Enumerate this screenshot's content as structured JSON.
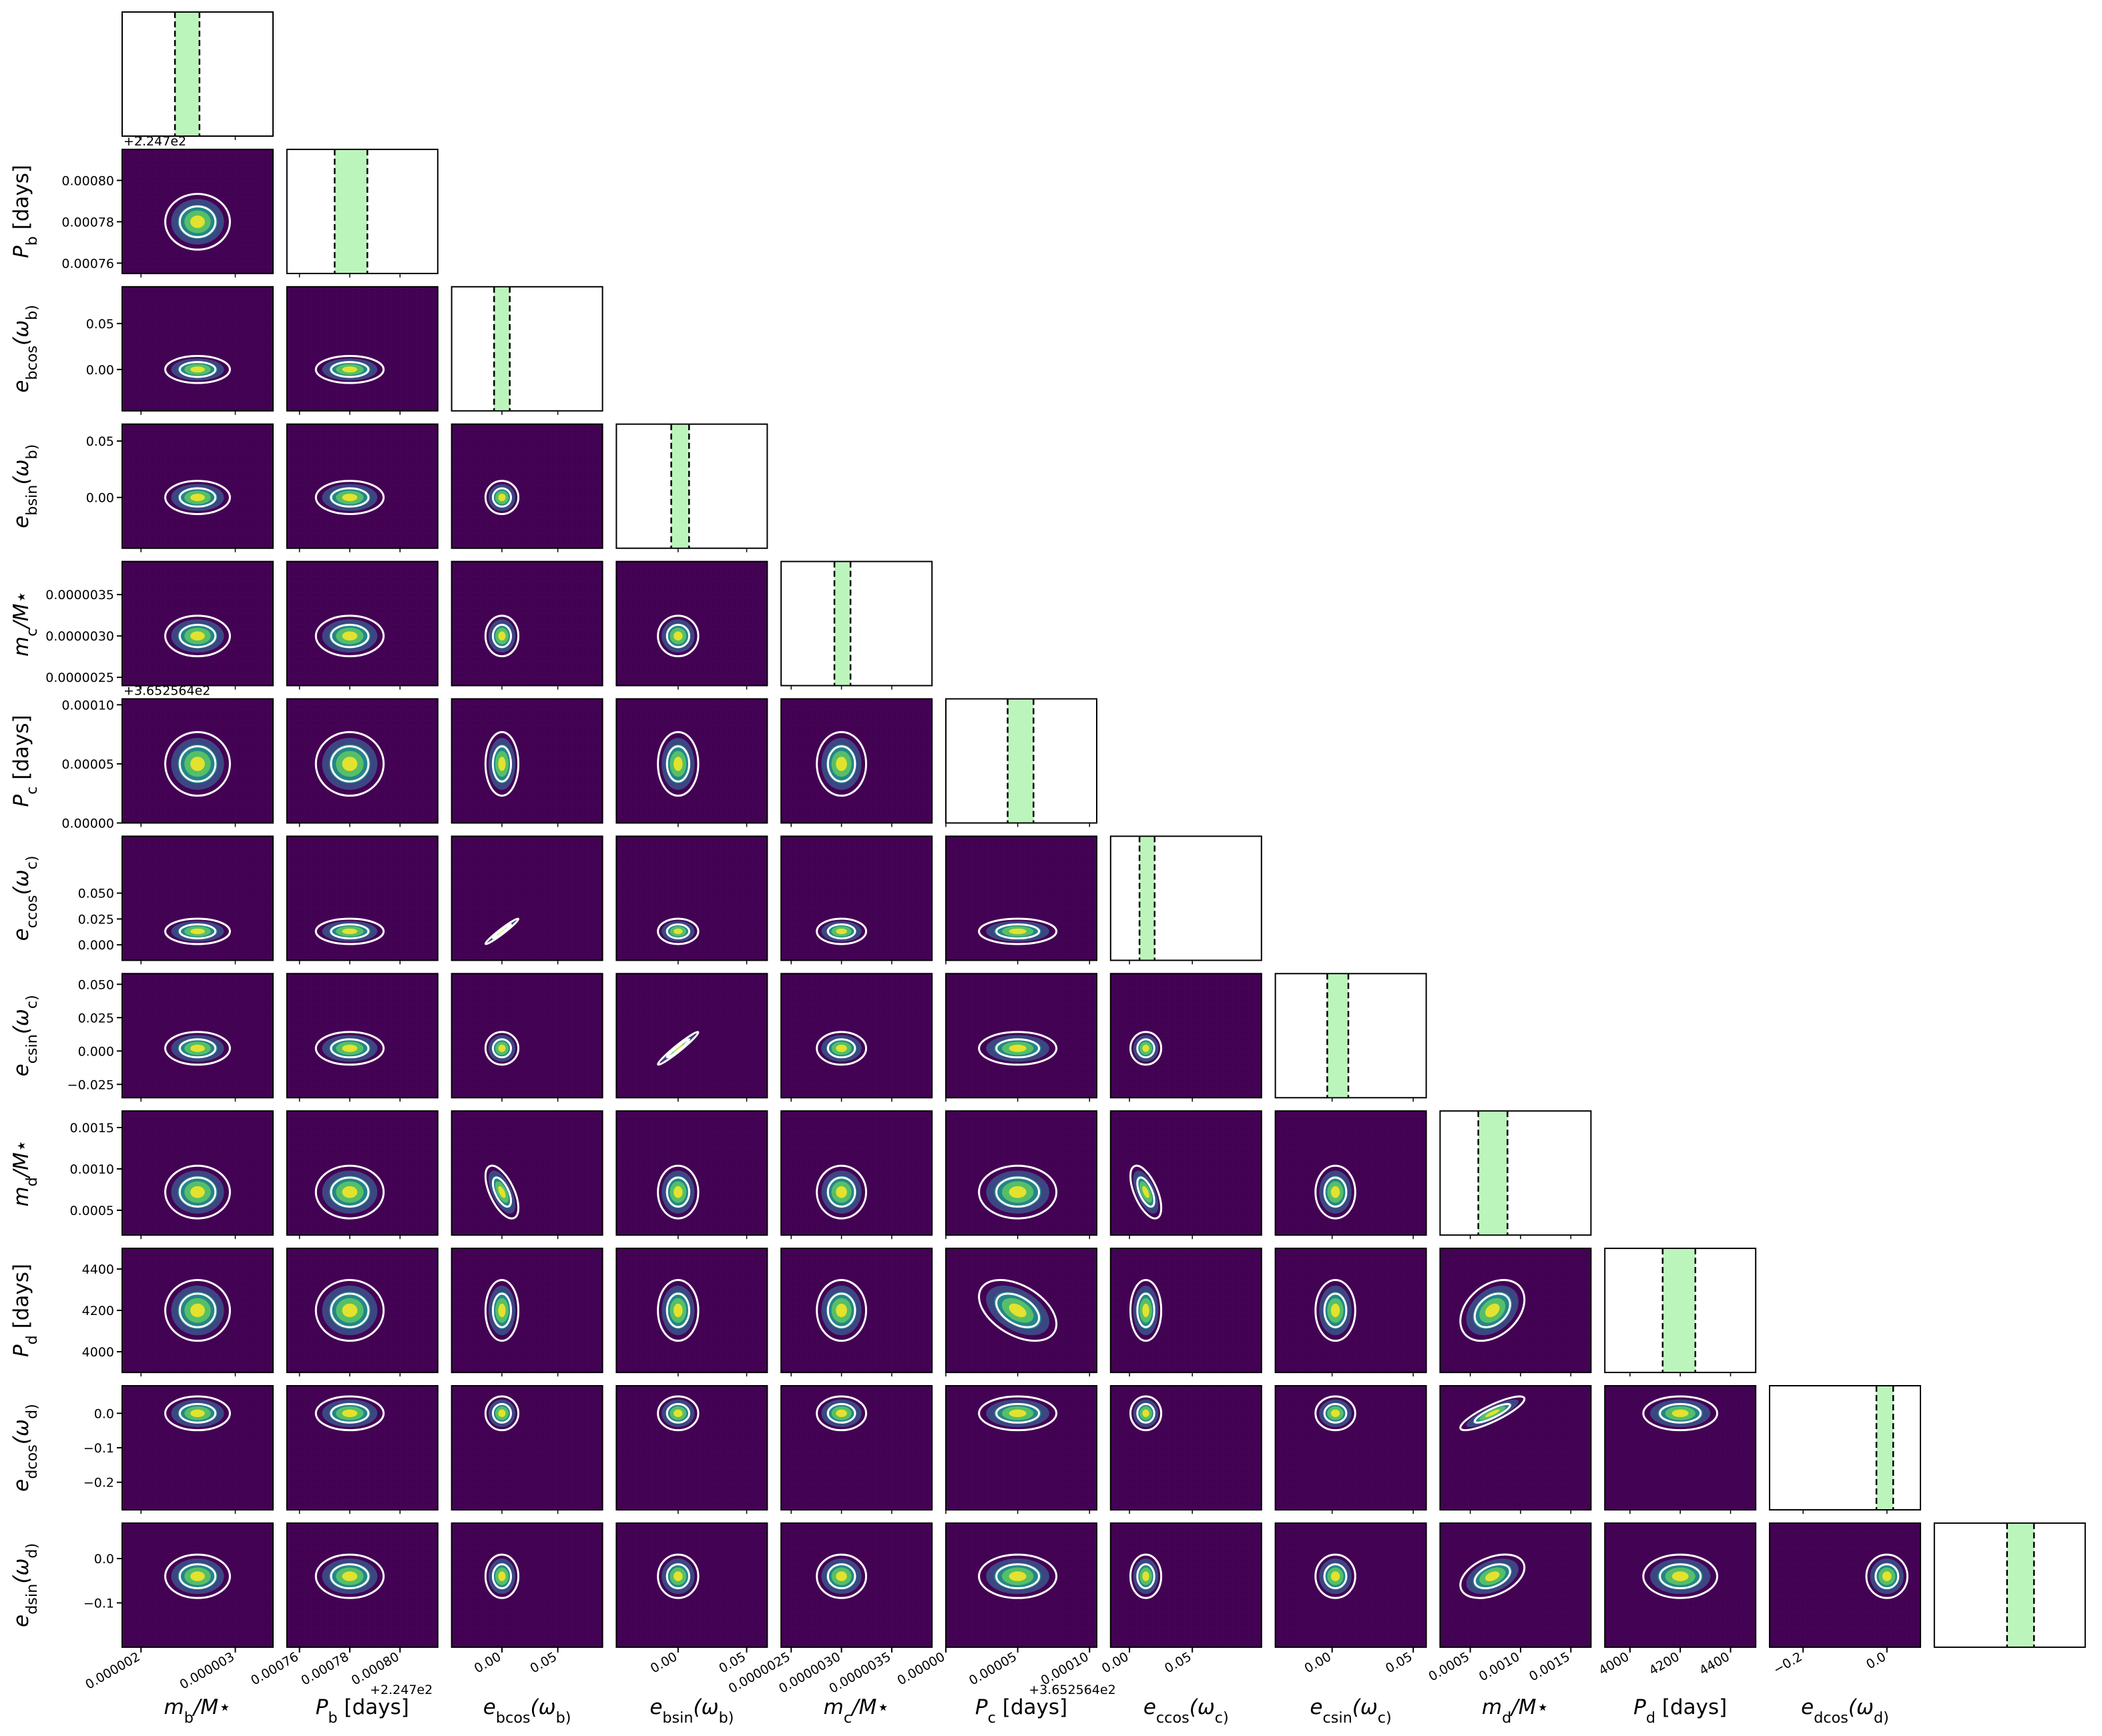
{
  "colors": {
    "hist_line": "#1f77b4",
    "ci_fill": "#90ee90",
    "ci_line": "#000000",
    "contour": "#ffffff",
    "density_low": "#440154",
    "density_mid1": "#3b528b",
    "density_mid2": "#21918c",
    "density_mid3": "#5ec962",
    "density_high": "#fde725",
    "panel_border": "#000000"
  },
  "chart_data": {
    "type": "corner",
    "grid": false,
    "params": [
      {
        "id": "m_b",
        "label": "m_b/M⋆",
        "range": [
          1.8e-06,
          3.4e-06
        ],
        "median": 2.6e-06,
        "ci": [
          2.36e-06,
          2.62e-06
        ],
        "sigma": 1.4e-07,
        "ticks": [
          {
            "v": 2e-06,
            "t": "0.000002"
          },
          {
            "v": 3e-06,
            "t": "0.000003"
          }
        ]
      },
      {
        "id": "P_b",
        "label": "P_b [days]",
        "offset": "+2.247e2",
        "range": [
          0.000755,
          0.000815
        ],
        "median": 0.00078,
        "ci": [
          0.000774,
          0.000787
        ],
        "sigma": 5.5e-06,
        "ticks": [
          {
            "v": 0.00076,
            "t": "0.00076"
          },
          {
            "v": 0.00078,
            "t": "0.00078"
          },
          {
            "v": 0.0008,
            "t": "0.00080"
          }
        ]
      },
      {
        "id": "ebcos",
        "label": "e_bcos(ω_b)",
        "range": [
          -0.045,
          0.09
        ],
        "median": 0.0,
        "ci": [
          -0.007,
          0.007
        ],
        "sigma": 0.006,
        "ticks": [
          {
            "v": 0.0,
            "t": "0.00"
          },
          {
            "v": 0.05,
            "t": "0.05"
          }
        ]
      },
      {
        "id": "ebsin",
        "label": "e_bsin(ω_b)",
        "range": [
          -0.045,
          0.065
        ],
        "median": 0.0,
        "ci": [
          -0.005,
          0.008
        ],
        "sigma": 0.006,
        "ticks": [
          {
            "v": 0.0,
            "t": "0.00"
          },
          {
            "v": 0.05,
            "t": "0.05"
          }
        ]
      },
      {
        "id": "m_c",
        "label": "m_c/M⋆",
        "range": [
          2.4e-06,
          3.9e-06
        ],
        "median": 3e-06,
        "ci": [
          2.93e-06,
          3.09e-06
        ],
        "sigma": 1e-07,
        "ticks": [
          {
            "v": 2.5e-06,
            "t": "0.0000025"
          },
          {
            "v": 3e-06,
            "t": "0.0000030"
          },
          {
            "v": 3.5e-06,
            "t": "0.0000035"
          }
        ]
      },
      {
        "id": "P_c",
        "label": "P_c [days]",
        "offset": "+3.652564e2",
        "range": [
          0.0,
          0.000105
        ],
        "median": 5e-05,
        "ci": [
          4.3e-05,
          6.1e-05
        ],
        "sigma": 1.1e-05,
        "ticks": [
          {
            "v": 0.0,
            "t": "0.00000"
          },
          {
            "v": 5e-05,
            "t": "0.00005"
          },
          {
            "v": 0.0001,
            "t": "0.00010"
          }
        ]
      },
      {
        "id": "eccos",
        "label": "e_ccos(ω_c)",
        "range": [
          -0.015,
          0.105
        ],
        "median": 0.013,
        "ci": [
          0.008,
          0.02
        ],
        "sigma": 0.005,
        "ticks": [
          {
            "v": 0.0,
            "t": "0.00"
          },
          {
            "v": 0.05,
            "t": "0.05"
          }
        ]
      },
      {
        "id": "ecsin",
        "label": "e_csin(ω_c)",
        "range": [
          -0.035,
          0.058
        ],
        "median": 0.002,
        "ci": [
          -0.003,
          0.01
        ],
        "sigma": 0.005,
        "ticks": [
          {
            "v": 0.0,
            "t": "0.00"
          },
          {
            "v": 0.05,
            "t": "0.05"
          }
        ]
      },
      {
        "id": "m_d",
        "label": "m_d/M⋆",
        "range": [
          0.0002,
          0.0017
        ],
        "median": 0.00072,
        "ci": [
          0.00058,
          0.00087
        ],
        "sigma": 0.00013,
        "ticks": [
          {
            "v": 0.0005,
            "t": "0.0005"
          },
          {
            "v": 0.001,
            "t": "0.0010"
          },
          {
            "v": 0.0015,
            "t": "0.0015"
          }
        ]
      },
      {
        "id": "P_d",
        "label": "P_d [days]",
        "range": [
          3900,
          4500
        ],
        "median": 4200,
        "ci": [
          4130,
          4260
        ],
        "sigma": 60,
        "ticks": [
          {
            "v": 4000,
            "t": "4000"
          },
          {
            "v": 4200,
            "t": "4200"
          },
          {
            "v": 4400,
            "t": "4400"
          }
        ]
      },
      {
        "id": "edcos",
        "label": "e_dcos(ω_d)",
        "range": [
          -0.28,
          0.08
        ],
        "median": 0.0,
        "ci": [
          -0.025,
          0.015
        ],
        "sigma": 0.02,
        "ticks": [
          {
            "v": -0.2,
            "t": "−0.2"
          },
          {
            "v": 0.0,
            "t": "0.0"
          }
        ]
      },
      {
        "id": "edsin",
        "label": "e_dsin(ω_d)",
        "range": [
          -0.2,
          0.08
        ],
        "median": -0.04,
        "ci": [
          -0.065,
          -0.015
        ],
        "sigma": 0.02,
        "ticks": [
          {
            "v": -0.1,
            "t": "−0.1"
          },
          {
            "v": 0.0,
            "t": "0.0"
          }
        ]
      }
    ],
    "y_ticks_override": {
      "edcos": [
        {
          "v": 0.0,
          "t": "0.0"
        },
        {
          "v": -0.1,
          "t": "−0.1"
        },
        {
          "v": -0.2,
          "t": "−0.2"
        }
      ],
      "edsin": [
        {
          "v": 0.0,
          "t": "0.0"
        },
        {
          "v": -0.1,
          "t": "−0.1"
        }
      ],
      "ebcos": [
        {
          "v": 0.0,
          "t": "0.00"
        },
        {
          "v": 0.05,
          "t": "0.05"
        }
      ],
      "ebsin": [
        {
          "v": 0.0,
          "t": "0.00"
        },
        {
          "v": 0.05,
          "t": "0.05"
        }
      ],
      "eccos": [
        {
          "v": 0.0,
          "t": "0.000"
        },
        {
          "v": 0.025,
          "t": "0.025"
        },
        {
          "v": 0.05,
          "t": "0.050"
        }
      ],
      "ecsin": [
        {
          "v": -0.025,
          "t": "−0.025"
        },
        {
          "v": 0.0,
          "t": "0.000"
        },
        {
          "v": 0.025,
          "t": "0.025"
        },
        {
          "v": 0.05,
          "t": "0.050"
        }
      ],
      "m_c": [
        {
          "v": 2.5e-06,
          "t": "0.0000025"
        },
        {
          "v": 3e-06,
          "t": "0.0000030"
        },
        {
          "v": 3.5e-06,
          "t": "0.0000035"
        }
      ],
      "P_c": [
        {
          "v": 0.0,
          "t": "0.00000"
        },
        {
          "v": 5e-05,
          "t": "0.00005"
        },
        {
          "v": 0.0001,
          "t": "0.00010"
        }
      ],
      "P_b": [
        {
          "v": 0.00076,
          "t": "0.00076"
        },
        {
          "v": 0.00078,
          "t": "0.00078"
        },
        {
          "v": 0.0008,
          "t": "0.00080"
        }
      ],
      "m_d": [
        {
          "v": 0.0005,
          "t": "0.0005"
        },
        {
          "v": 0.001,
          "t": "0.0010"
        },
        {
          "v": 0.0015,
          "t": "0.0015"
        }
      ],
      "P_d": [
        {
          "v": 4000,
          "t": "4000"
        },
        {
          "v": 4200,
          "t": "4200"
        },
        {
          "v": 4400,
          "t": "4400"
        }
      ]
    },
    "x_ticks_override": {
      "ecsin": [
        {
          "v": 0.0,
          "t": "0.00"
        },
        {
          "v": 0.05,
          "t": "0.05"
        }
      ],
      "edsin": []
    },
    "correlations": [
      {
        "i": 3,
        "j": 2,
        "rho": 0.0
      },
      {
        "i": 6,
        "j": 2,
        "rho": 0.97
      },
      {
        "i": 7,
        "j": 3,
        "rho": 0.97
      },
      {
        "i": 8,
        "j": 2,
        "rho": -0.6
      },
      {
        "i": 8,
        "j": 6,
        "rho": -0.6
      },
      {
        "i": 9,
        "j": 5,
        "rho": -0.45
      },
      {
        "i": 9,
        "j": 8,
        "rho": 0.35
      },
      {
        "i": 10,
        "j": 8,
        "rho": 0.85
      },
      {
        "i": 11,
        "j": 8,
        "rho": 0.4
      }
    ]
  }
}
